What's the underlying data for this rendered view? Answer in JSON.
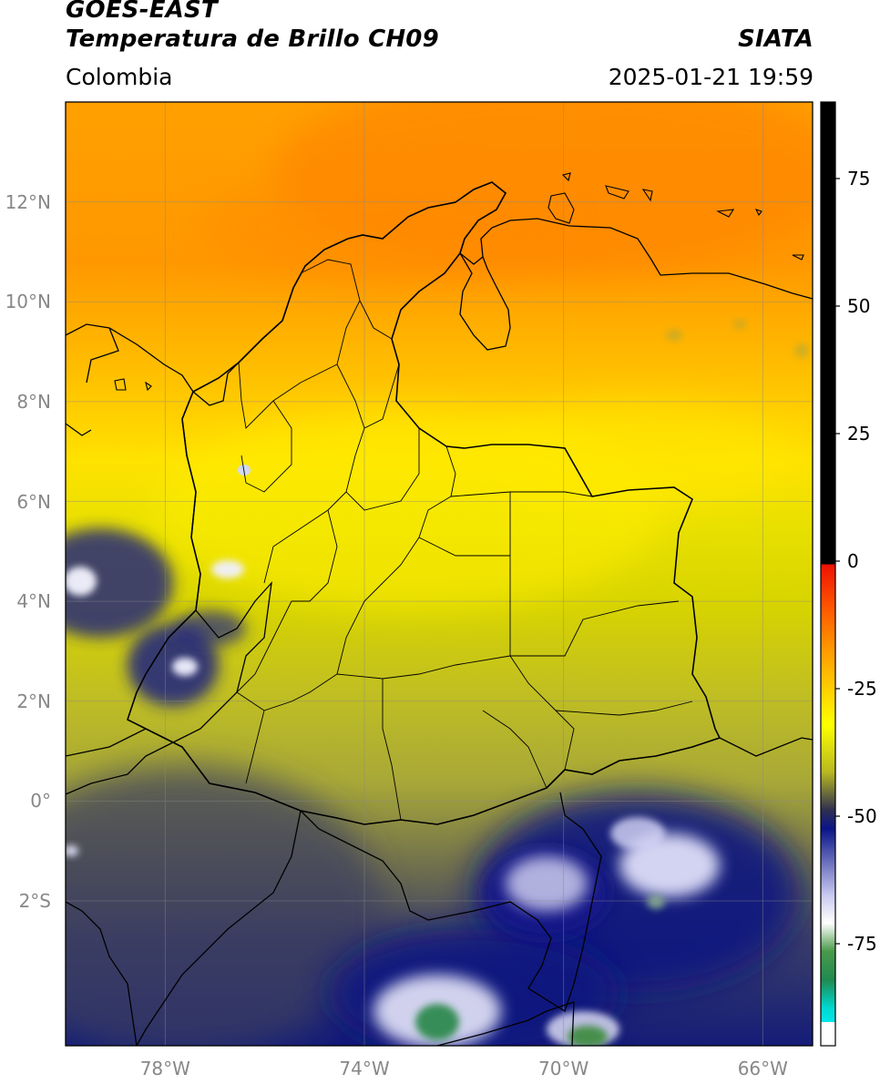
{
  "header": {
    "satellite": "GOES-EAST",
    "product": "Temperatura de Brillo CH09",
    "agency": "SIATA",
    "region": "Colombia",
    "datetime": "2025-01-21 19:59"
  },
  "map": {
    "lon_range": [
      -80,
      -65
    ],
    "lat_range": [
      -4.9,
      14
    ],
    "lat_ticks": [
      "12°N",
      "10°N",
      "8°N",
      "6°N",
      "4°N",
      "2°N",
      "0°",
      "2°S"
    ],
    "lat_values": [
      12,
      10,
      8,
      6,
      4,
      2,
      0,
      -2
    ],
    "lon_ticks": [
      "78°W",
      "74°W",
      "70°W",
      "66°W"
    ],
    "lon_values": [
      -78,
      -74,
      -70,
      -66
    ]
  },
  "colorbar": {
    "ticks": [
      "75",
      "50",
      "25",
      "0",
      "-25",
      "-50",
      "-75"
    ],
    "tick_values": [
      75,
      50,
      25,
      0,
      -25,
      -50,
      -75
    ],
    "range": [
      -95,
      90
    ]
  },
  "colors": {
    "warm_orange": "#ff8a00",
    "yellow": "#ffee00",
    "olive": "#a8a830",
    "dark_blue": "#1a237e",
    "cloud_white": "#f2f2ff",
    "green": "#3a8a3a",
    "cyan": "#00d8d8",
    "red": "#ee1100",
    "black": "#000000"
  }
}
